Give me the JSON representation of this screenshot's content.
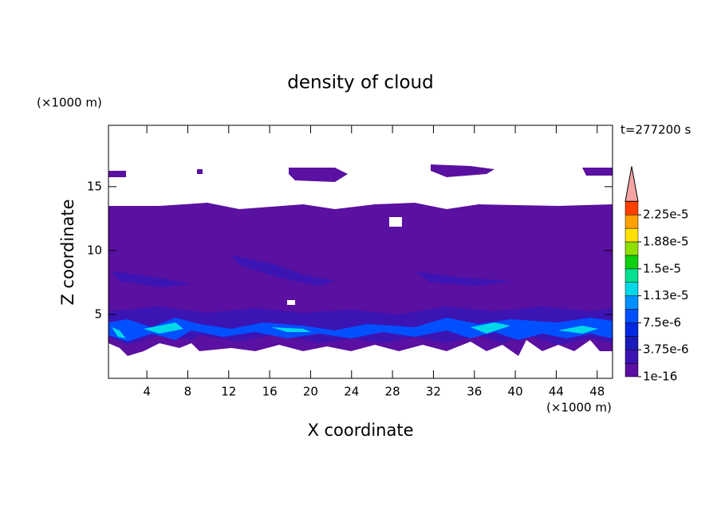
{
  "chart_data": {
    "type": "contour",
    "title": "density of cloud",
    "xlabel": "X coordinate",
    "ylabel": "Z coordinate",
    "xunit": "(×1000 m)",
    "yunit": "(×1000 m)",
    "time_label": "t=277200 s",
    "xlim": [
      0.25,
      49.5
    ],
    "ylim": [
      0,
      19.8
    ],
    "xticks": [
      4,
      8,
      12,
      16,
      20,
      24,
      28,
      32,
      36,
      40,
      44,
      48
    ],
    "yticks": [
      5,
      10,
      15
    ],
    "colorbar": {
      "ticks": [
        {
          "value": 1e-16,
          "label": "1e-16"
        },
        {
          "value": 3.75e-06,
          "label": "3.75e-6"
        },
        {
          "value": 7.5e-06,
          "label": "7.5e-6"
        },
        {
          "value": 1.125e-05,
          "label": "1.13e-5"
        },
        {
          "value": 1.5e-05,
          "label": "1.5e-5"
        },
        {
          "value": 1.875e-05,
          "label": "1.88e-5"
        },
        {
          "value": 2.25e-05,
          "label": "2.25e-5"
        }
      ],
      "colors": [
        "#5a10a0",
        "#3c14b4",
        "#1a1ab8",
        "#0028e0",
        "#0050ff",
        "#0090ff",
        "#00d8e8",
        "#00e090",
        "#10d010",
        "#90e000",
        "#ffe000",
        "#ffa000",
        "#ff4000"
      ],
      "extend_color": "#f4a4a4"
    }
  }
}
